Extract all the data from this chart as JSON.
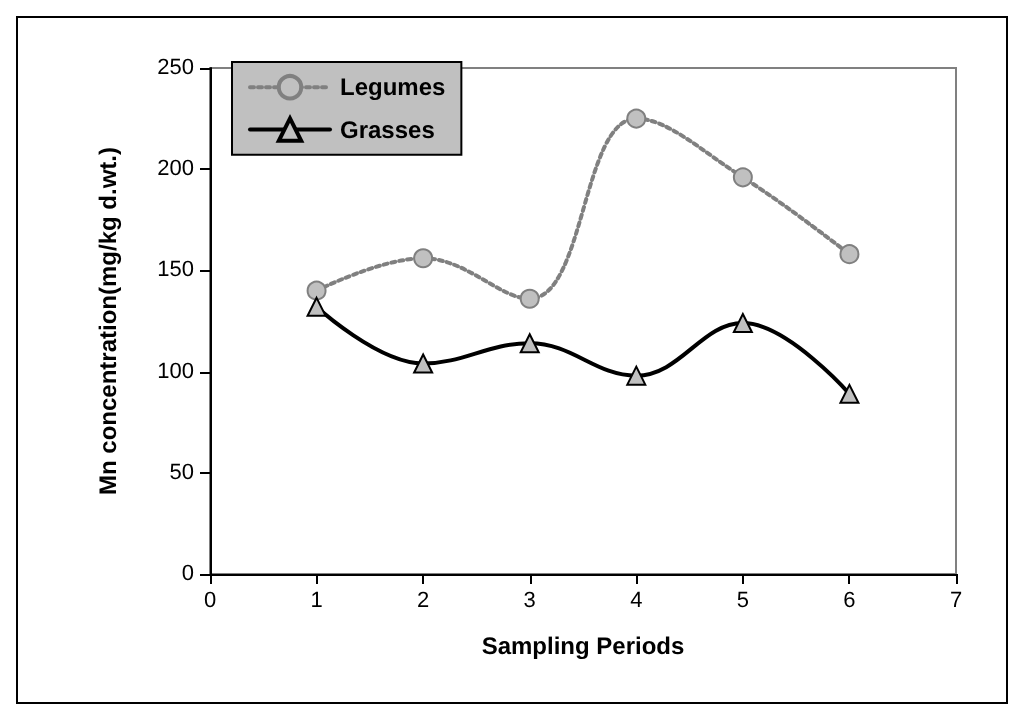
{
  "chart_data": {
    "type": "line",
    "xlabel": "Sampling Periods",
    "ylabel": "Mn concentration(mg/kg d.wt.)",
    "xlim": [
      0,
      7
    ],
    "xticks": [
      0,
      1,
      2,
      3,
      4,
      5,
      6,
      7
    ],
    "ylim": [
      0,
      250
    ],
    "yticks": [
      0,
      50,
      100,
      150,
      200,
      250
    ],
    "grid": false,
    "legend": "top left",
    "x": [
      1,
      2,
      3,
      4,
      5,
      6
    ],
    "series": [
      {
        "name": "Legumes",
        "color": "#808080",
        "values": [
          140,
          156,
          136,
          225,
          196,
          158
        ],
        "marker": "circle",
        "line_style": "dotted"
      },
      {
        "name": "Grasses",
        "color": "#000000",
        "values": [
          132,
          104,
          114,
          98,
          124,
          89
        ],
        "marker": "triangle",
        "line_style": "solid"
      }
    ]
  }
}
